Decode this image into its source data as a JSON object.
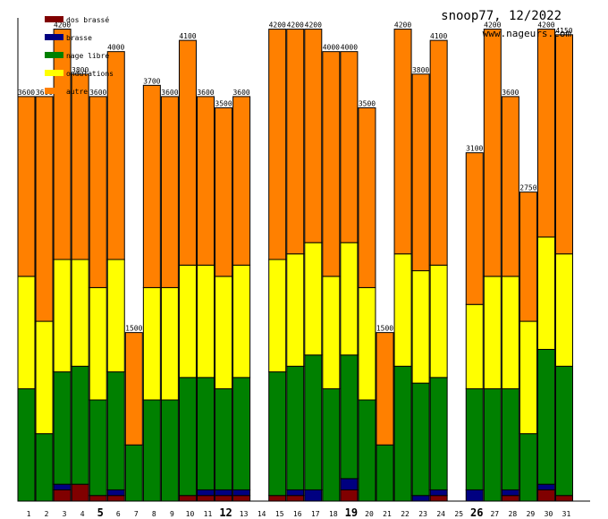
{
  "chart_data": {
    "type": "stacked-bar",
    "title": "snoop77, 12/2022",
    "subtitle": "www.nageurs.com",
    "ylim": [
      0,
      4300
    ],
    "legend_position": "top-left",
    "categories": [
      "1",
      "2",
      "3",
      "4",
      "5",
      "6",
      "7",
      "8",
      "9",
      "10",
      "11",
      "12",
      "13",
      "14",
      "15",
      "16",
      "17",
      "18",
      "19",
      "20",
      "21",
      "22",
      "23",
      "24",
      "25",
      "26",
      "27",
      "28",
      "29",
      "30",
      "31"
    ],
    "bold_categories": [
      "5",
      "12",
      "19",
      "26"
    ],
    "totals": [
      3600,
      3600,
      4200,
      3800,
      3600,
      4000,
      1500,
      3700,
      3600,
      4100,
      3600,
      3500,
      3600,
      0,
      4200,
      4200,
      4200,
      4000,
      4000,
      3500,
      1500,
      4200,
      3800,
      4100,
      0,
      3100,
      4200,
      3600,
      2750,
      4200,
      4150
    ],
    "series": [
      {
        "name": "dos brassé",
        "color": "#800000",
        "values": [
          0,
          0,
          100,
          150,
          50,
          50,
          0,
          0,
          0,
          50,
          50,
          50,
          50,
          0,
          50,
          50,
          0,
          0,
          100,
          0,
          0,
          0,
          0,
          50,
          0,
          0,
          0,
          50,
          0,
          100,
          50
        ]
      },
      {
        "name": "brasse",
        "color": "#000080",
        "values": [
          0,
          0,
          50,
          0,
          0,
          50,
          0,
          0,
          0,
          0,
          50,
          50,
          50,
          0,
          0,
          50,
          100,
          0,
          100,
          0,
          0,
          0,
          50,
          50,
          0,
          100,
          0,
          50,
          0,
          50,
          0
        ]
      },
      {
        "name": "nage libre",
        "color": "#008000",
        "values": [
          1000,
          600,
          1000,
          1050,
          850,
          1050,
          500,
          900,
          900,
          1050,
          1000,
          900,
          1000,
          0,
          1100,
          1100,
          1200,
          1000,
          1100,
          900,
          500,
          1200,
          1000,
          1000,
          0,
          900,
          1000,
          900,
          600,
          1200,
          1150
        ]
      },
      {
        "name": "ondulations",
        "color": "#ffff00",
        "values": [
          1000,
          1000,
          1000,
          950,
          1000,
          1000,
          0,
          1000,
          1000,
          1000,
          1000,
          1000,
          1000,
          0,
          1000,
          1000,
          1000,
          1000,
          1000,
          1000,
          0,
          1000,
          1000,
          1000,
          0,
          750,
          1000,
          1000,
          1000,
          1000,
          1000
        ]
      },
      {
        "name": "autre",
        "color": "#ff8000",
        "values": [
          1600,
          2000,
          2050,
          1650,
          1700,
          1850,
          1000,
          1800,
          1700,
          2000,
          1500,
          1500,
          1500,
          0,
          2050,
          2000,
          1900,
          2000,
          1700,
          1600,
          1000,
          2000,
          1750,
          2000,
          0,
          1350,
          2200,
          1600,
          1150,
          1850,
          1950
        ]
      }
    ]
  }
}
